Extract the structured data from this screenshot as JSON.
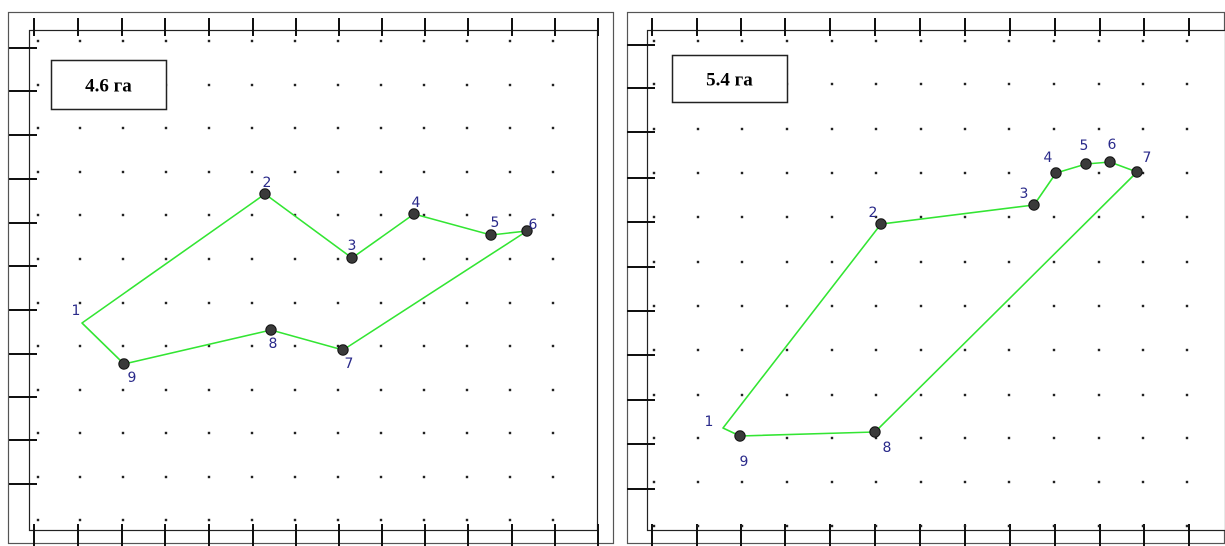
{
  "panels": [
    {
      "area_label": "4.6 га",
      "points": [
        {
          "label": "1",
          "marker": false
        },
        {
          "label": "2",
          "marker": true
        },
        {
          "label": "3",
          "marker": true
        },
        {
          "label": "4",
          "marker": true
        },
        {
          "label": "5",
          "marker": true
        },
        {
          "label": "6",
          "marker": true
        },
        {
          "label": "7",
          "marker": true
        },
        {
          "label": "8",
          "marker": true
        },
        {
          "label": "9",
          "marker": true
        }
      ]
    },
    {
      "area_label": "5.4 га",
      "points": [
        {
          "label": "1",
          "marker": false
        },
        {
          "label": "2",
          "marker": true
        },
        {
          "label": "3",
          "marker": true
        },
        {
          "label": "4",
          "marker": true
        },
        {
          "label": "5",
          "marker": true
        },
        {
          "label": "6",
          "marker": true
        },
        {
          "label": "7",
          "marker": true
        },
        {
          "label": "8",
          "marker": true
        },
        {
          "label": "9",
          "marker": true
        }
      ]
    }
  ],
  "colors": {
    "polygon": "#33e533",
    "marker": "#3a3a3a",
    "point_label": "#2a2a8a",
    "grid_dot": "#222222"
  }
}
